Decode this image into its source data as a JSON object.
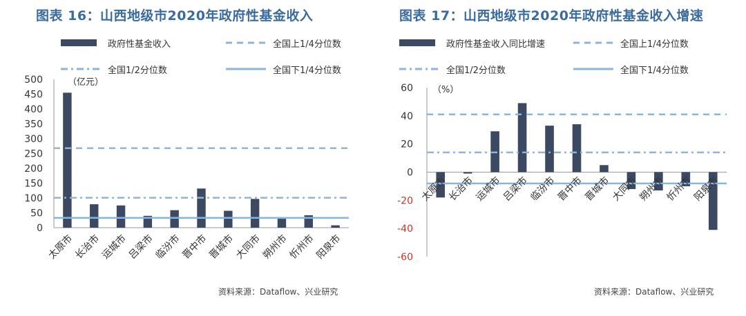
{
  "colors": {
    "title": "#3a6b9e",
    "bar": "#3b4a62",
    "ref_light": "#8db4dc",
    "ref_solid": "#8db4dc",
    "axis_text_left": "#333333",
    "axis_text_right_neg": "#c0392b"
  },
  "left": {
    "title": "图表 16：山西地级市2020年政府性基金收入",
    "source": "资料来源：Dataflow、兴业研究",
    "legend": {
      "bar": "政府性基金收入",
      "upper": "全国上1/4分位数",
      "median": "全国1/2分位数",
      "lower": "全国下1/4分位数"
    }
  },
  "right": {
    "title": "图表 17：山西地级市2020年政府性基金收入增速",
    "source": "资料来源：Dataflow、兴业研究",
    "legend": {
      "bar": "政府性基金收入同比增速",
      "upper": "全国上1/4分位数",
      "median": "全国1/2分位数",
      "lower": "全国下1/4分位数"
    }
  },
  "chart_data": [
    {
      "type": "bar",
      "title": "图表 16：山西地级市2020年政府性基金收入",
      "unit_label": "（亿元）",
      "categories": [
        "太原市",
        "长治市",
        "运城市",
        "吕梁市",
        "临汾市",
        "晋中市",
        "晋城市",
        "大同市",
        "朔州市",
        "忻州市",
        "阳泉市"
      ],
      "series": [
        {
          "name": "政府性基金收入",
          "values": [
            455,
            79,
            75,
            40,
            59,
            132,
            57,
            97,
            30,
            42,
            8
          ]
        }
      ],
      "reference_lines": {
        "全国上1/4分位数": 268,
        "全国1/2分位数": 101,
        "全国下1/4分位数": 33
      },
      "ylim": [
        0,
        500
      ],
      "yticks": [
        0,
        50,
        100,
        150,
        200,
        250,
        300,
        350,
        400,
        450,
        500
      ],
      "grid": false,
      "legend_position": "top"
    },
    {
      "type": "bar",
      "title": "图表 17：山西地级市2020年政府性基金收入增速",
      "unit_label": "（%）",
      "categories": [
        "太原市",
        "长治市",
        "运城市",
        "吕梁市",
        "临汾市",
        "晋中市",
        "晋城市",
        "大同市",
        "朔州市",
        "忻州市",
        "阳泉市"
      ],
      "series": [
        {
          "name": "政府性基金收入同比增速",
          "values": [
            -18,
            -1,
            29,
            49,
            33,
            34,
            5,
            -12,
            -13,
            -10,
            -41
          ]
        }
      ],
      "reference_lines": {
        "全国上1/4分位数": 41,
        "全国1/2分位数": 14,
        "全国下1/4分位数": -8
      },
      "ylim": [
        -60,
        60
      ],
      "yticks": [
        -60,
        -40,
        -20,
        0,
        20,
        40,
        60
      ],
      "grid": false,
      "legend_position": "top"
    }
  ]
}
